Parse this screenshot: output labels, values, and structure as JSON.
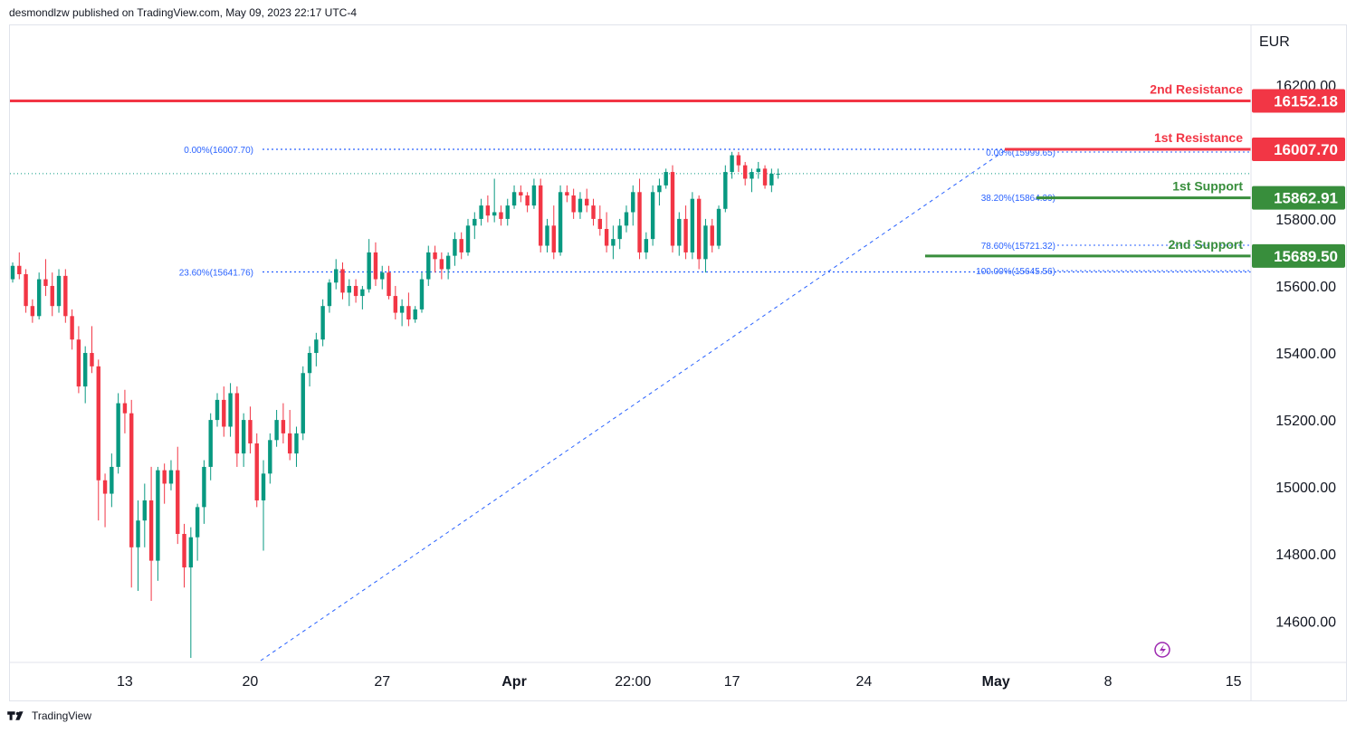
{
  "header": {
    "text": "desmondlzw published on TradingView.com, May 09, 2023 22:17 UTC-4"
  },
  "footer": {
    "brand": "TradingView"
  },
  "chart_data": {
    "type": "candlestick",
    "currency": "EUR",
    "y_ticks": [
      "16200.00",
      "15800.00",
      "15600.00",
      "15400.00",
      "15200.00",
      "15000.00",
      "14800.00",
      "14600.00"
    ],
    "y_tick_values": [
      16200,
      15800,
      15600,
      15400,
      15200,
      15000,
      14800,
      14600
    ],
    "ylim": [
      14480,
      16340
    ],
    "x_ticks": [
      {
        "label": "13",
        "bar": 17,
        "bold": false
      },
      {
        "label": "20",
        "bar": 36,
        "bold": false
      },
      {
        "label": "27",
        "bar": 56,
        "bold": false
      },
      {
        "label": "Apr",
        "bar": 76,
        "bold": true
      },
      {
        "label": "22:00",
        "bar": 94,
        "bold": false
      },
      {
        "label": "17",
        "bar": 109,
        "bold": false
      },
      {
        "label": "24",
        "bar": 129,
        "bold": false
      },
      {
        "label": "May",
        "bar": 149,
        "bold": true
      },
      {
        "label": "8",
        "bar": 166,
        "bold": false
      },
      {
        "label": "15",
        "bar": 185,
        "bold": false
      }
    ],
    "levels": [
      {
        "name": "2nd Resistance",
        "value": 16152.18,
        "label": "16152.18",
        "color": "#f23645"
      },
      {
        "name": "1st Resistance",
        "value": 16007.7,
        "label": "16007.70",
        "color": "#f23645"
      },
      {
        "name": "1st Support",
        "value": 15862.91,
        "label": "15862.91",
        "color": "#388e3c"
      },
      {
        "name": "2nd Support",
        "value": 15689.5,
        "label": "15689.50",
        "color": "#388e3c"
      }
    ],
    "fib_main": [
      {
        "label": "0.00%(16007.70)",
        "value": 16007.7
      },
      {
        "label": "23.60%(15641.76)",
        "value": 15641.76
      }
    ],
    "fib_small": [
      {
        "label": "0.00%(15999.65)",
        "value": 15999.65
      },
      {
        "label": "38.20%(15864.39)",
        "value": 15864.39
      },
      {
        "label": "78.60%(15721.32)",
        "value": 15721.32
      },
      {
        "label": "100.00%(15645.56)",
        "value": 15645.56
      }
    ],
    "last_price": 15935,
    "candles": [
      [
        15620,
        15670,
        15610,
        15660
      ],
      [
        15660,
        15700,
        15620,
        15635
      ],
      [
        15635,
        15650,
        15520,
        15540
      ],
      [
        15540,
        15560,
        15490,
        15510
      ],
      [
        15510,
        15640,
        15500,
        15620
      ],
      [
        15620,
        15680,
        15570,
        15600
      ],
      [
        15600,
        15640,
        15510,
        15540
      ],
      [
        15540,
        15650,
        15520,
        15630
      ],
      [
        15630,
        15650,
        15490,
        15510
      ],
      [
        15510,
        15530,
        15410,
        15440
      ],
      [
        15440,
        15480,
        15280,
        15300
      ],
      [
        15300,
        15420,
        15250,
        15400
      ],
      [
        15400,
        15480,
        15340,
        15360
      ],
      [
        15360,
        15380,
        14900,
        15020
      ],
      [
        15020,
        15040,
        14880,
        14980
      ],
      [
        14980,
        15100,
        14940,
        15060
      ],
      [
        15060,
        15280,
        15040,
        15250
      ],
      [
        15250,
        15290,
        15160,
        15220
      ],
      [
        15220,
        15260,
        14700,
        14820
      ],
      [
        14820,
        14960,
        14690,
        14900
      ],
      [
        14900,
        15010,
        14820,
        14960
      ],
      [
        14960,
        15060,
        14660,
        14780
      ],
      [
        14780,
        15060,
        14720,
        15050
      ],
      [
        15050,
        15070,
        14950,
        15010
      ],
      [
        15010,
        15080,
        14990,
        15050
      ],
      [
        15050,
        15120,
        14830,
        14860
      ],
      [
        14860,
        14890,
        14700,
        14760
      ],
      [
        14760,
        14880,
        14490,
        14850
      ],
      [
        14850,
        14950,
        14780,
        14940
      ],
      [
        14940,
        15080,
        14890,
        15060
      ],
      [
        15060,
        15220,
        15020,
        15200
      ],
      [
        15200,
        15280,
        15180,
        15260
      ],
      [
        15260,
        15300,
        15150,
        15180
      ],
      [
        15180,
        15310,
        15150,
        15280
      ],
      [
        15280,
        15300,
        15060,
        15100
      ],
      [
        15100,
        15220,
        15060,
        15200
      ],
      [
        15200,
        15240,
        15100,
        15130
      ],
      [
        15130,
        15160,
        14940,
        14960
      ],
      [
        14960,
        15080,
        14810,
        15040
      ],
      [
        15040,
        15160,
        15010,
        15140
      ],
      [
        15140,
        15230,
        15120,
        15200
      ],
      [
        15200,
        15250,
        15130,
        15160
      ],
      [
        15160,
        15230,
        15080,
        15100
      ],
      [
        15100,
        15180,
        15060,
        15160
      ],
      [
        15160,
        15360,
        15140,
        15340
      ],
      [
        15340,
        15420,
        15300,
        15400
      ],
      [
        15400,
        15460,
        15360,
        15440
      ],
      [
        15440,
        15560,
        15420,
        15540
      ],
      [
        15540,
        15620,
        15520,
        15610
      ],
      [
        15610,
        15680,
        15590,
        15650
      ],
      [
        15650,
        15670,
        15560,
        15580
      ],
      [
        15580,
        15620,
        15540,
        15600
      ],
      [
        15600,
        15620,
        15550,
        15570
      ],
      [
        15570,
        15600,
        15530,
        15590
      ],
      [
        15590,
        15740,
        15580,
        15700
      ],
      [
        15700,
        15730,
        15600,
        15620
      ],
      [
        15620,
        15660,
        15590,
        15640
      ],
      [
        15640,
        15660,
        15560,
        15570
      ],
      [
        15570,
        15600,
        15500,
        15520
      ],
      [
        15520,
        15560,
        15480,
        15540
      ],
      [
        15540,
        15580,
        15480,
        15500
      ],
      [
        15500,
        15540,
        15490,
        15530
      ],
      [
        15530,
        15640,
        15520,
        15620
      ],
      [
        15620,
        15720,
        15600,
        15700
      ],
      [
        15700,
        15720,
        15640,
        15680
      ],
      [
        15680,
        15700,
        15620,
        15650
      ],
      [
        15650,
        15700,
        15620,
        15690
      ],
      [
        15690,
        15760,
        15660,
        15740
      ],
      [
        15740,
        15760,
        15680,
        15700
      ],
      [
        15700,
        15800,
        15690,
        15780
      ],
      [
        15780,
        15820,
        15740,
        15800
      ],
      [
        15800,
        15860,
        15780,
        15840
      ],
      [
        15840,
        15870,
        15790,
        15810
      ],
      [
        15810,
        15920,
        15790,
        15820
      ],
      [
        15820,
        15840,
        15780,
        15800
      ],
      [
        15800,
        15860,
        15780,
        15840
      ],
      [
        15840,
        15900,
        15830,
        15880
      ],
      [
        15880,
        15900,
        15850,
        15870
      ],
      [
        15870,
        15880,
        15820,
        15840
      ],
      [
        15840,
        15920,
        15830,
        15900
      ],
      [
        15900,
        15920,
        15700,
        15720
      ],
      [
        15720,
        15800,
        15700,
        15780
      ],
      [
        15780,
        15840,
        15680,
        15700
      ],
      [
        15700,
        15900,
        15690,
        15880
      ],
      [
        15880,
        15900,
        15850,
        15870
      ],
      [
        15870,
        15890,
        15800,
        15820
      ],
      [
        15820,
        15880,
        15800,
        15860
      ],
      [
        15860,
        15890,
        15820,
        15840
      ],
      [
        15840,
        15860,
        15780,
        15800
      ],
      [
        15800,
        15840,
        15750,
        15770
      ],
      [
        15770,
        15820,
        15700,
        15720
      ],
      [
        15720,
        15780,
        15680,
        15740
      ],
      [
        15740,
        15800,
        15710,
        15780
      ],
      [
        15780,
        15840,
        15760,
        15820
      ],
      [
        15820,
        15900,
        15780,
        15880
      ],
      [
        15880,
        15920,
        15680,
        15700
      ],
      [
        15700,
        15760,
        15680,
        15740
      ],
      [
        15740,
        15900,
        15720,
        15880
      ],
      [
        15880,
        15920,
        15840,
        15900
      ],
      [
        15900,
        15950,
        15890,
        15940
      ],
      [
        15940,
        15960,
        15700,
        15720
      ],
      [
        15720,
        15820,
        15690,
        15800
      ],
      [
        15800,
        15840,
        15680,
        15700
      ],
      [
        15700,
        15880,
        15680,
        15860
      ],
      [
        15860,
        15870,
        15650,
        15680
      ],
      [
        15680,
        15800,
        15640,
        15780
      ],
      [
        15780,
        15800,
        15700,
        15720
      ],
      [
        15720,
        15840,
        15710,
        15830
      ],
      [
        15830,
        15960,
        15820,
        15940
      ],
      [
        15940,
        16000,
        15920,
        15990
      ],
      [
        15990,
        16000,
        15940,
        15960
      ],
      [
        15960,
        15970,
        15900,
        15920
      ],
      [
        15920,
        15950,
        15880,
        15940
      ],
      [
        15940,
        15970,
        15920,
        15950
      ],
      [
        15950,
        15960,
        15890,
        15900
      ],
      [
        15900,
        15950,
        15880,
        15935
      ],
      [
        15935,
        15950,
        15920,
        15935
      ]
    ]
  }
}
